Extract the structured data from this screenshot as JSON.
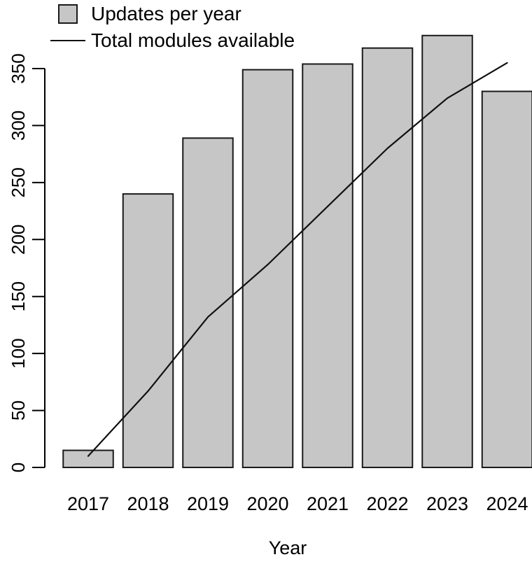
{
  "chart_data": {
    "type": "bar",
    "categories": [
      "2017",
      "2018",
      "2019",
      "2020",
      "2021",
      "2022",
      "2023",
      "2024"
    ],
    "series": [
      {
        "name": "Updates per year",
        "type": "bar",
        "values": [
          15,
          240,
          289,
          349,
          354,
          368,
          379,
          330
        ]
      },
      {
        "name": "Total modules available",
        "type": "line",
        "values": [
          10,
          67,
          132,
          178,
          229,
          280,
          324,
          355
        ]
      }
    ],
    "title": "",
    "xlabel": "Year",
    "ylabel": "",
    "ylim": [
      0,
      350
    ],
    "yticks": [
      0,
      50,
      100,
      150,
      200,
      250,
      300,
      350
    ],
    "grid": false,
    "legend_position": "top-left",
    "colors": {
      "bar_fill": "#c6c6c6",
      "bar_stroke": "#1a1a1a",
      "line": "#111111",
      "axis": "#000000",
      "background": "#ffffff"
    }
  }
}
